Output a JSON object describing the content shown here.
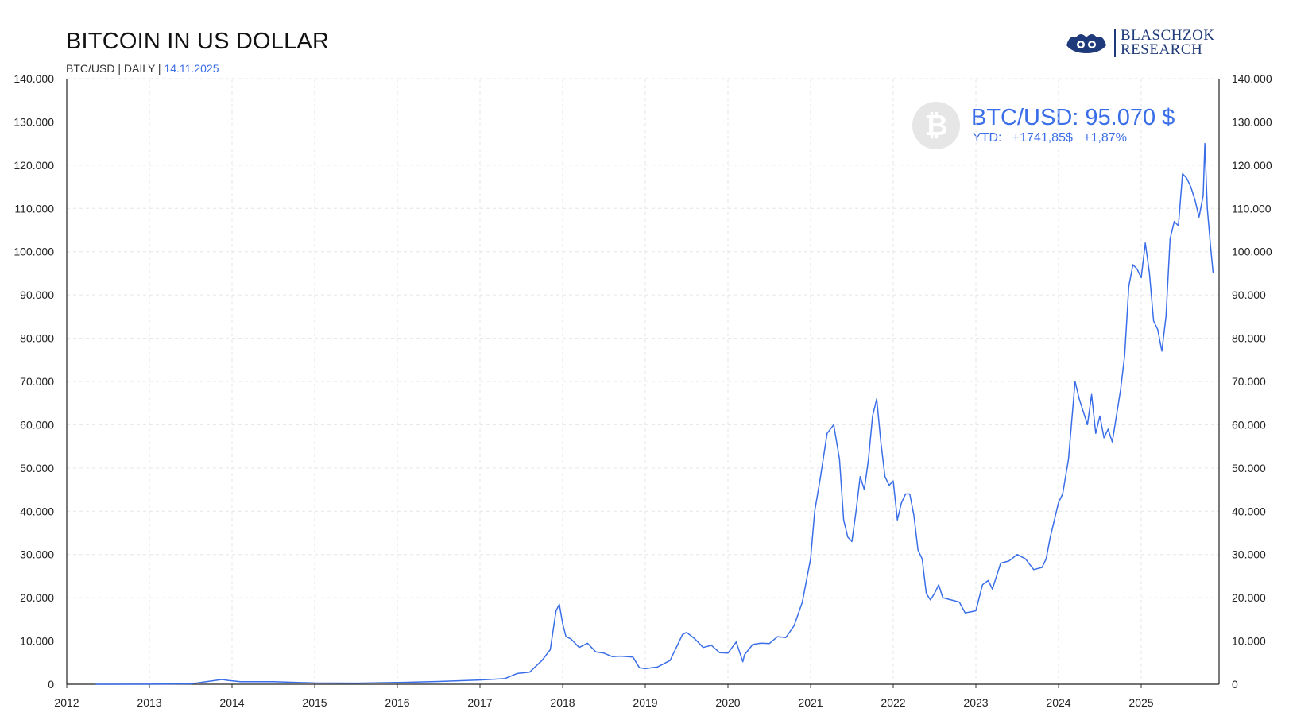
{
  "header": {
    "title": "BITCOIN IN US DOLLAR",
    "subtitle_prefix": "BTC/USD | DAILY |",
    "date": "14.11.2025"
  },
  "logo": {
    "line1": "BLASCHZOK",
    "line2": "RESEARCH"
  },
  "price_box": {
    "icon": "bitcoin-icon",
    "price_label": "BTC/USD: 95.070 $",
    "ytd_label": "YTD:",
    "ytd_abs": "+1741,85$",
    "ytd_pct": "+1,87%"
  },
  "colors": {
    "line": "#3a6ee8",
    "accent": "#3a6ee8",
    "logo": "#1f3a7a"
  },
  "chart_data": {
    "type": "line",
    "title": "BITCOIN IN US DOLLAR",
    "xlabel": "",
    "ylabel": "",
    "xlim": [
      2012,
      2025.95
    ],
    "ylim": [
      0,
      140000
    ],
    "y_ticks": [
      "0",
      "10.000",
      "20.000",
      "30.000",
      "40.000",
      "50.000",
      "60.000",
      "70.000",
      "80.000",
      "90.000",
      "100.000",
      "110.000",
      "120.000",
      "130.000",
      "140.000"
    ],
    "x_ticks": [
      "2012",
      "2013",
      "2014",
      "2015",
      "2016",
      "2017",
      "2018",
      "2019",
      "2020",
      "2021",
      "2022",
      "2023",
      "2024",
      "2025"
    ],
    "grid": true,
    "series": [
      {
        "name": "BTC/USD",
        "x": [
          2012.35,
          2013.0,
          2013.5,
          2013.88,
          2013.95,
          2014.1,
          2014.5,
          2015.0,
          2015.5,
          2016.0,
          2016.5,
          2017.0,
          2017.3,
          2017.45,
          2017.6,
          2017.75,
          2017.85,
          2017.92,
          2017.96,
          2018.0,
          2018.04,
          2018.1,
          2018.2,
          2018.3,
          2018.4,
          2018.5,
          2018.6,
          2018.7,
          2018.85,
          2018.93,
          2019.0,
          2019.15,
          2019.3,
          2019.45,
          2019.5,
          2019.6,
          2019.7,
          2019.8,
          2019.9,
          2020.0,
          2020.1,
          2020.18,
          2020.2,
          2020.3,
          2020.4,
          2020.5,
          2020.6,
          2020.7,
          2020.8,
          2020.9,
          2021.0,
          2021.05,
          2021.12,
          2021.2,
          2021.28,
          2021.35,
          2021.4,
          2021.45,
          2021.5,
          2021.55,
          2021.6,
          2021.65,
          2021.7,
          2021.75,
          2021.8,
          2021.85,
          2021.9,
          2021.95,
          2022.0,
          2022.05,
          2022.1,
          2022.15,
          2022.2,
          2022.25,
          2022.3,
          2022.35,
          2022.4,
          2022.45,
          2022.5,
          2022.55,
          2022.6,
          2022.7,
          2022.8,
          2022.87,
          2022.95,
          2023.0,
          2023.08,
          2023.15,
          2023.2,
          2023.3,
          2023.4,
          2023.5,
          2023.6,
          2023.7,
          2023.8,
          2023.85,
          2023.9,
          2024.0,
          2024.05,
          2024.12,
          2024.2,
          2024.25,
          2024.3,
          2024.35,
          2024.4,
          2024.45,
          2024.5,
          2024.55,
          2024.6,
          2024.65,
          2024.7,
          2024.75,
          2024.8,
          2024.85,
          2024.9,
          2024.95,
          2025.0,
          2025.05,
          2025.1,
          2025.15,
          2025.2,
          2025.25,
          2025.3,
          2025.35,
          2025.4,
          2025.45,
          2025.5,
          2025.55,
          2025.6,
          2025.65,
          2025.7,
          2025.75,
          2025.77,
          2025.8,
          2025.84,
          2025.87
        ],
        "y": [
          5,
          13,
          100,
          1100,
          900,
          600,
          600,
          300,
          250,
          400,
          650,
          1000,
          1300,
          2500,
          2800,
          5500,
          8000,
          17000,
          18500,
          14000,
          11000,
          10500,
          8500,
          9500,
          7500,
          7200,
          6400,
          6500,
          6300,
          3800,
          3600,
          4000,
          5500,
          11500,
          12000,
          10500,
          8500,
          9000,
          7300,
          7200,
          9800,
          5200,
          6800,
          9200,
          9500,
          9400,
          11000,
          10800,
          13500,
          19000,
          29000,
          40000,
          48000,
          58000,
          60000,
          52000,
          38000,
          34000,
          33000,
          40000,
          48000,
          45000,
          52000,
          62000,
          66000,
          56000,
          48000,
          46000,
          47000,
          38000,
          42000,
          44000,
          44000,
          39000,
          31000,
          29000,
          21000,
          19500,
          21000,
          23000,
          20000,
          19500,
          19000,
          16500,
          16800,
          17000,
          23000,
          24000,
          22000,
          28000,
          28500,
          30000,
          29000,
          26500,
          27000,
          29000,
          34000,
          42000,
          44000,
          52000,
          70000,
          66000,
          63000,
          60000,
          67000,
          58000,
          62000,
          57000,
          59000,
          56000,
          62000,
          68000,
          76000,
          92000,
          97000,
          96000,
          94000,
          102000,
          95000,
          84000,
          82000,
          77000,
          85000,
          103000,
          107000,
          106000,
          118000,
          117000,
          115000,
          112000,
          108000,
          113000,
          125000,
          110000,
          101000,
          95070
        ]
      }
    ]
  }
}
